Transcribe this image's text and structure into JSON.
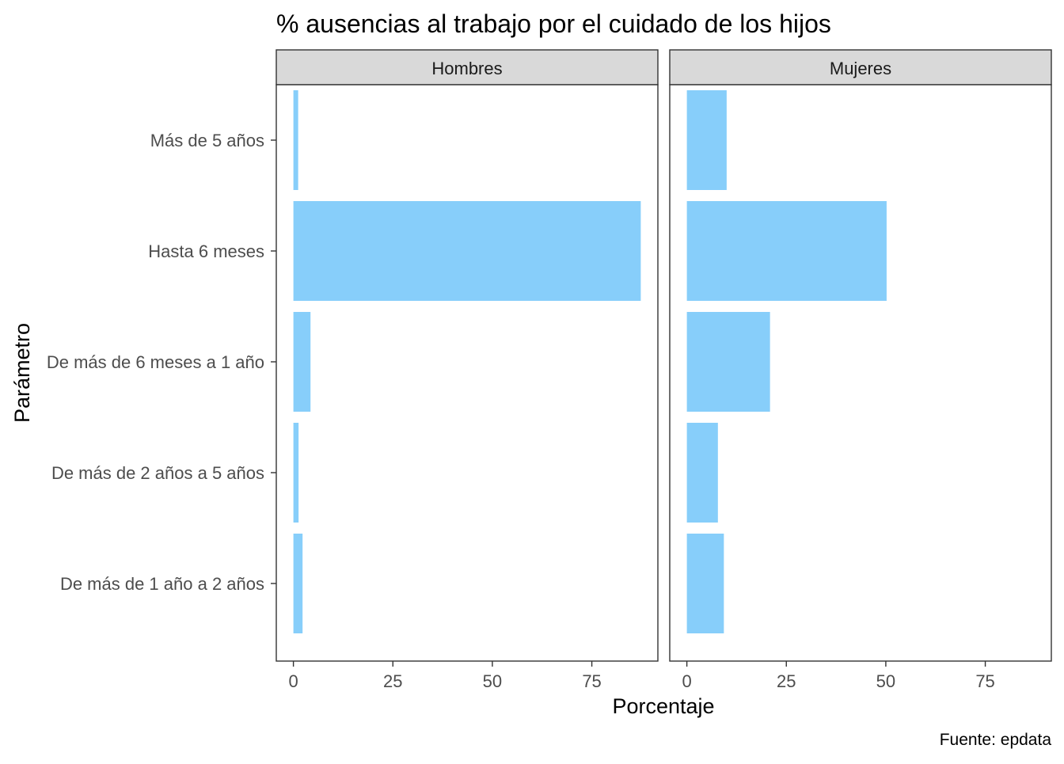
{
  "chart_data": {
    "type": "bar",
    "orientation": "horizontal",
    "title": "% ausencias al trabajo por el cuidado de los hijos",
    "xlabel": "Porcentaje",
    "ylabel": "Parámetro",
    "caption": "Fuente: epdata",
    "categories": [
      "Más de 5 años",
      "Hasta 6 meses",
      "De más de 6 meses a 1 año",
      "De más de 2 años a 5 años",
      "De más de 1 año a 2 años"
    ],
    "facets": [
      {
        "name": "Hombres",
        "values": [
          1.2,
          87.3,
          4.3,
          1.3,
          2.3
        ]
      },
      {
        "name": "Mujeres",
        "values": [
          10.0,
          50.2,
          20.9,
          7.8,
          9.3
        ]
      }
    ],
    "xlim": [
      -4.3,
      91.6
    ],
    "xticks": [
      0,
      25,
      50,
      75
    ],
    "bar_color": "#87CEFA",
    "grid": false,
    "legend": "none"
  }
}
